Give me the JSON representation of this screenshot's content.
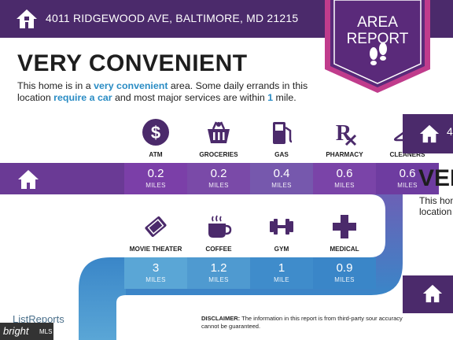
{
  "header": {
    "address": "4011 RIDGEWOOD AVE, BALTIMORE, MD 21215"
  },
  "badge": {
    "line1": "AREA",
    "line2": "REPORT"
  },
  "title": "VERY CONVENIENT",
  "description": {
    "part1": "This home is in a ",
    "hl1": "very convenient",
    "part2": " area. Some daily errands in this location ",
    "hl2": "require a car",
    "part3": " and most major services are within ",
    "hl3": "1",
    "part4": " mile."
  },
  "row1": [
    {
      "label": "ATM",
      "value": "0.2",
      "unit": "MILES",
      "icon": "dollar-icon",
      "color": "#7b3fa8"
    },
    {
      "label": "GROCERIES",
      "value": "0.2",
      "unit": "MILES",
      "icon": "basket-icon",
      "color": "#7a4aa8"
    },
    {
      "label": "GAS",
      "value": "0.4",
      "unit": "MILES",
      "icon": "gas-pump-icon",
      "color": "#7658ad"
    },
    {
      "label": "PHARMACY",
      "value": "0.6",
      "unit": "MILES",
      "icon": "rx-icon",
      "color": "#7a44a8"
    },
    {
      "label": "CLEANERS",
      "value": "0.6",
      "unit": "MILES",
      "icon": "hanger-icon",
      "color": "#6e3ca0"
    }
  ],
  "row2": [
    {
      "label": "MOVIE THEATER",
      "value": "3",
      "unit": "MILES",
      "icon": "ticket-icon",
      "color": "#5aa6d6"
    },
    {
      "label": "COFFEE",
      "value": "1.2",
      "unit": "MILES",
      "icon": "coffee-icon",
      "color": "#4f9ad0"
    },
    {
      "label": "GYM",
      "value": "1",
      "unit": "MILE",
      "icon": "dumbbell-icon",
      "color": "#3f8ccb"
    },
    {
      "label": "MEDICAL",
      "value": "0.9",
      "unit": "MILES",
      "icon": "medical-cross-icon",
      "color": "#3a86c8"
    }
  ],
  "right_panel": {
    "header_text": "4",
    "title": "VER",
    "desc_line1": "This hom",
    "desc_line2": "location"
  },
  "footer": {
    "logo": "ListReports",
    "bright_text": "bright",
    "bright_mls": "MLS",
    "disclaimer_label": "DISCLAIMER:",
    "disclaimer_text": " The information in this report is from third-party sour accuracy cannot be guaranteed."
  },
  "colors": {
    "purple_dark": "#4b2a6b",
    "purple": "#6a3a95",
    "blue": "#3a86c8",
    "link": "#2a8cc4"
  }
}
